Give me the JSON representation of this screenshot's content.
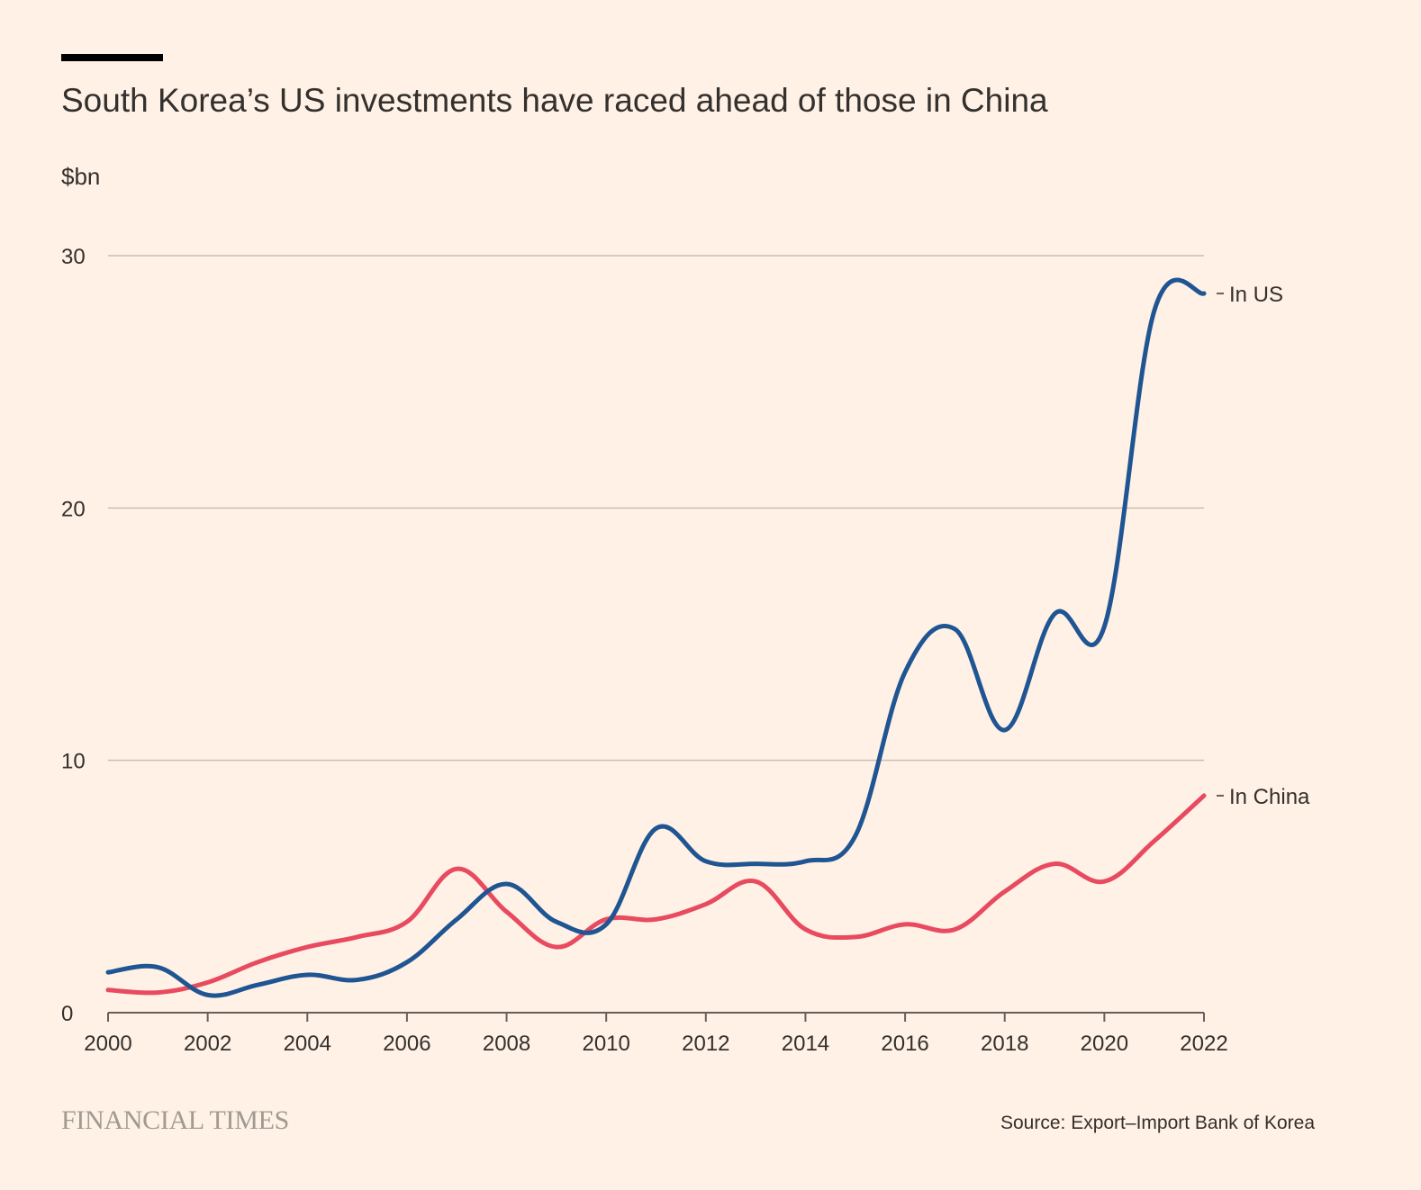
{
  "header": {
    "title": "South Korea’s US investments have raced ahead of those in China",
    "unit": "$bn"
  },
  "footer": {
    "logo_text": "FINANCIAL TIMES",
    "source": "Source: Export–Import Bank of Korea"
  },
  "chart_data": {
    "type": "line",
    "title": "South Korea’s US investments have raced ahead of those in China",
    "ylabel": "$bn",
    "xlabel": "",
    "xlim": [
      2000,
      2022
    ],
    "ylim": [
      0,
      30
    ],
    "x_ticks": [
      "2000",
      "2002",
      "2004",
      "2006",
      "2008",
      "2010",
      "2012",
      "2014",
      "2016",
      "2018",
      "2020",
      "2022"
    ],
    "y_ticks": [
      "0",
      "10",
      "20",
      "30"
    ],
    "grid": true,
    "legend": "direct line labels at right end",
    "x": [
      2000,
      2001,
      2002,
      2003,
      2004,
      2005,
      2006,
      2007,
      2008,
      2009,
      2010,
      2011,
      2012,
      2013,
      2014,
      2015,
      2016,
      2017,
      2018,
      2019,
      2020,
      2021,
      2022
    ],
    "series": [
      {
        "name": "In US",
        "color": "#1f5592",
        "values": [
          1.6,
          1.8,
          0.7,
          1.1,
          1.5,
          1.3,
          2.0,
          3.7,
          5.1,
          3.6,
          3.5,
          7.3,
          6.0,
          5.9,
          6.0,
          7.0,
          13.5,
          15.2,
          11.2,
          15.8,
          15.3,
          27.8,
          28.5
        ]
      },
      {
        "name": "In China",
        "color": "#e84a5f",
        "values": [
          0.9,
          0.8,
          1.2,
          2.0,
          2.6,
          3.0,
          3.6,
          5.7,
          4.0,
          2.6,
          3.7,
          3.7,
          4.3,
          5.2,
          3.3,
          3.0,
          3.5,
          3.3,
          4.8,
          5.9,
          5.2,
          6.8,
          8.6
        ]
      }
    ]
  },
  "colors": {
    "background": "#fff1e5",
    "text": "#33302e",
    "grid": "#c7bfb4",
    "axis": "#66605c"
  }
}
